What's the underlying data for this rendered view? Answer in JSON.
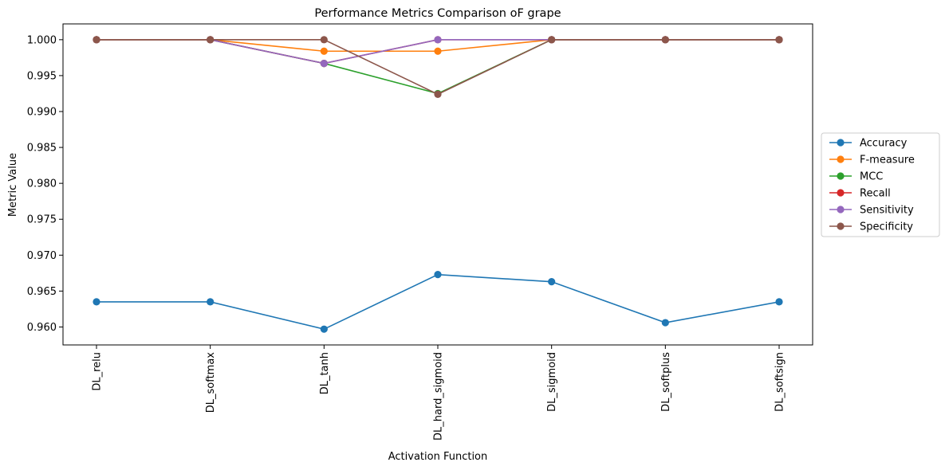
{
  "chart_data": {
    "type": "line",
    "title": "Performance Metrics Comparison oF grape",
    "xlabel": "Activation Function",
    "ylabel": "Metric Value",
    "categories": [
      "DL_relu",
      "DL_softmax",
      "DL_tanh",
      "DL_hard_sigmoid",
      "DL_sigmoid",
      "DL_softplus",
      "DL_softsign"
    ],
    "ylim": [
      0.9575,
      1.0022
    ],
    "yticks": [
      "0.960",
      "0.965",
      "0.970",
      "0.975",
      "0.980",
      "0.985",
      "0.990",
      "0.995",
      "1.000"
    ],
    "grid": false,
    "legend_position": "right-center outside",
    "series": [
      {
        "name": "Accuracy",
        "color": "#1f77b4",
        "values": [
          0.9635,
          0.9635,
          0.9597,
          0.9673,
          0.9663,
          0.9606,
          0.9635
        ]
      },
      {
        "name": "F-measure",
        "color": "#ff7f0e",
        "values": [
          1.0,
          1.0,
          0.9984,
          0.9984,
          1.0,
          1.0,
          1.0
        ]
      },
      {
        "name": "MCC",
        "color": "#2ca02c",
        "values": [
          1.0,
          1.0,
          0.9967,
          0.9925,
          1.0,
          1.0,
          1.0
        ]
      },
      {
        "name": "Recall",
        "color": "#d62728",
        "values": [
          1.0,
          1.0,
          0.9967,
          1.0,
          1.0,
          1.0,
          1.0
        ]
      },
      {
        "name": "Sensitivity",
        "color": "#9467bd",
        "values": [
          1.0,
          1.0,
          0.9967,
          1.0,
          1.0,
          1.0,
          1.0
        ]
      },
      {
        "name": "Specificity",
        "color": "#8c564b",
        "values": [
          1.0,
          1.0,
          1.0,
          0.9924,
          1.0,
          1.0,
          1.0
        ]
      }
    ]
  }
}
